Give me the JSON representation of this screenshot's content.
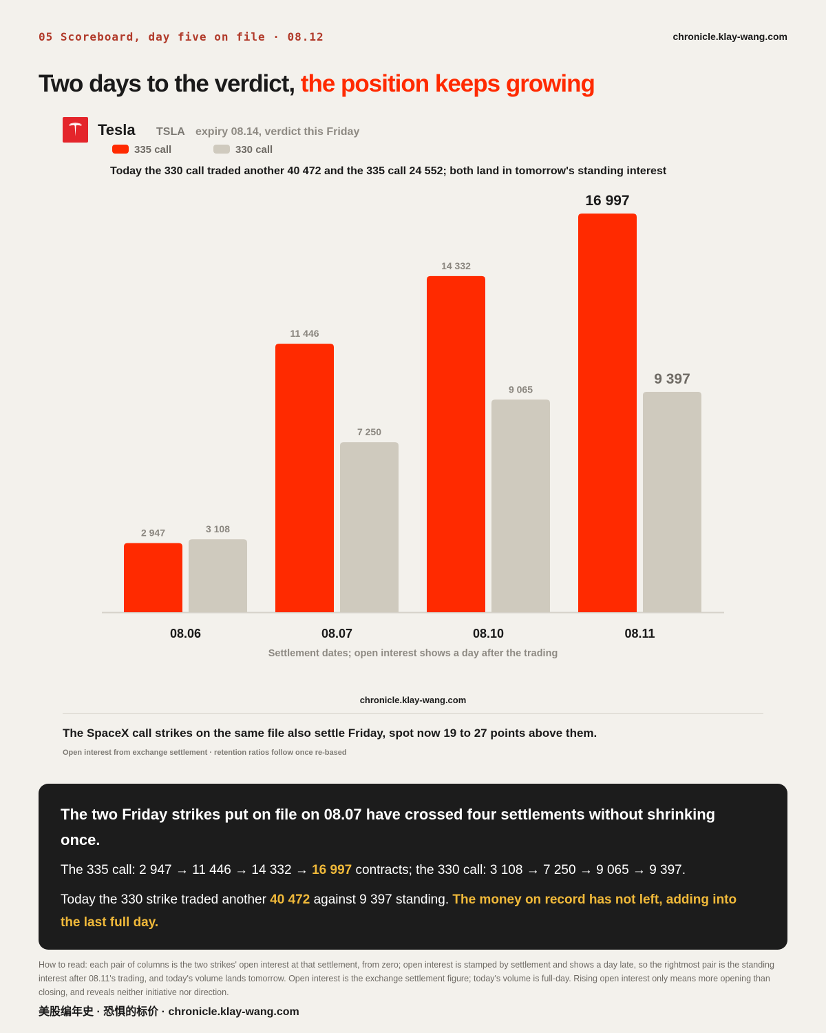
{
  "header": {
    "section": "05  Scoreboard, day five on file · 08.12",
    "site": "chronicle.klay-wang.com"
  },
  "headline": {
    "lead": "Two days to the verdict, ",
    "accent": "the position keeps growing"
  },
  "brand": {
    "name": "Tesla",
    "ticker": "TSLA",
    "expiry": "expiry 08.14, verdict this Friday",
    "logo_icon": "tesla-logo-icon"
  },
  "colors": {
    "call_335": "#ff2a00",
    "call_330": "#cfcabe",
    "accent_text": "#f0b93a"
  },
  "lead_text": "Today the 330 call traded another 40 472 and the 335 call 24 552; both land in tomorrow's standing interest",
  "chart_data": {
    "type": "bar",
    "categories": [
      "08.06",
      "08.07",
      "08.10",
      "08.11"
    ],
    "series": [
      {
        "name": "335 call",
        "values": [
          2947,
          11446,
          14332,
          16997
        ],
        "labels": [
          "2 947",
          "11 446",
          "14 332",
          "16 997"
        ]
      },
      {
        "name": "330 call",
        "values": [
          3108,
          7250,
          9065,
          9397
        ],
        "labels": [
          "3 108",
          "7 250",
          "9 065",
          "9 397"
        ]
      }
    ],
    "title": "",
    "xlabel": "Settlement dates; open interest shows a day after the trading",
    "ylabel": "",
    "ylim": [
      0,
      17000
    ],
    "legend": "top-left",
    "grid": false,
    "emphasized_last": true
  },
  "mid_site": "chronicle.klay-wang.com",
  "note": {
    "main": "The SpaceX call strikes on the same file also settle Friday, spot now 19 to 27 points above them.",
    "source": "Open interest from exchange settlement · retention ratios follow once re-based"
  },
  "panel": {
    "title": "The two Friday strikes put on file on 08.07 have crossed four settlements without shrinking once.",
    "line1_a": "The 335 call: 2 947 → 11 446 → 14 332 → ",
    "line1_hl": "16 997",
    "line1_b": " contracts; the 330 call: 3 108 → 7 250 → 9 065 → 9 397.",
    "line2_a": "Today the 330 strike traded another ",
    "line2_hl1": "40 472",
    "line2_b": " against 9 397 standing. ",
    "line2_hl2": "The money on record has not left, adding into the last full day."
  },
  "howto": "How to read: each pair of columns is the two strikes' open interest at that settlement, from zero; open interest is stamped by settlement and shows a day late, so the rightmost pair is the standing interest after 08.11's trading, and today's volume lands tomorrow. Open interest is the exchange settlement figure; today's volume is full-day. Rising open interest only means more opening than closing, and reveals neither initiative nor direction.",
  "footer": "美股编年史 · 恐惧的标价 · chronicle.klay-wang.com"
}
